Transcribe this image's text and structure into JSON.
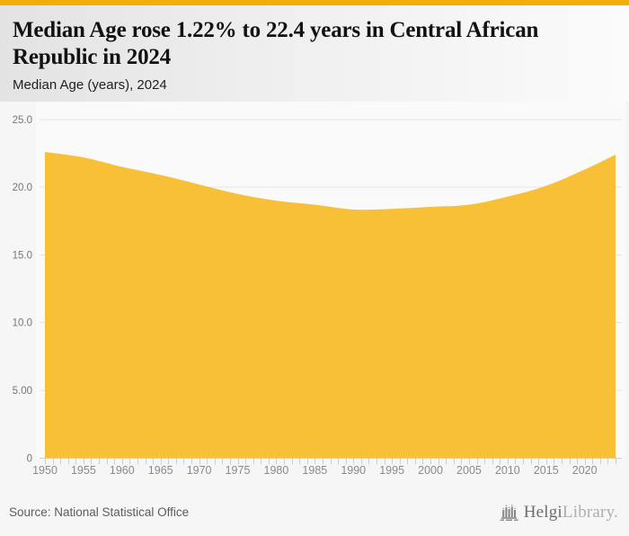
{
  "page": {
    "title": "Median Age rose 1.22% to 22.4 years in Central African Republic in 2024",
    "subtitle": "Median Age (years), 2024",
    "source": "Source: National Statistical Office",
    "logo": {
      "icon": "helgi-building-icon",
      "text_primary": "Helgi",
      "text_secondary": "Library."
    }
  },
  "colors": {
    "topbar_accent": "#F5AD0A",
    "area_fill": "#F7C036",
    "plot_background": "#FAFAFA",
    "gridline": "#E5E5E5",
    "baseline": "#CFCFCF",
    "tick_mark": "#C5D0DF",
    "y_label_text": "#767676",
    "x_label_text": "#8A8A8A",
    "title_text": "#121212",
    "source_text": "#5C5C5C",
    "logo_icon": "#858585"
  },
  "chart_data": {
    "type": "area",
    "title": "Median Age (years), 2024",
    "xlabel": "",
    "ylabel": "",
    "x_range": [
      1950,
      2024
    ],
    "ylim": [
      0,
      25
    ],
    "grid": true,
    "legend": "none",
    "x_label_step": 5,
    "x_minor_tick_step": 1,
    "yticks": [
      {
        "value": 25,
        "label": "25.0"
      },
      {
        "value": 20,
        "label": "20.0"
      },
      {
        "value": 15,
        "label": "15.0"
      },
      {
        "value": 10,
        "label": "10.0"
      },
      {
        "value": 5,
        "label": "5.00"
      },
      {
        "value": 0,
        "label": "0"
      }
    ],
    "xtick_labels": [
      1950,
      1955,
      1960,
      1965,
      1970,
      1975,
      1980,
      1985,
      1990,
      1995,
      2000,
      2005,
      2010,
      2015,
      2020
    ],
    "series": [
      {
        "name": "Median Age (years)",
        "x": [
          1950,
          1955,
          1960,
          1965,
          1970,
          1975,
          1980,
          1985,
          1990,
          1995,
          2000,
          2005,
          2010,
          2015,
          2020,
          2024
        ],
        "values": [
          22.6,
          22.2,
          21.5,
          20.9,
          20.2,
          19.5,
          19.0,
          18.7,
          18.35,
          18.4,
          18.55,
          18.7,
          19.3,
          20.1,
          21.3,
          22.4
        ]
      }
    ],
    "last_point": {
      "year": 2024,
      "value": 22.4,
      "change_pct": "1.22%"
    }
  }
}
